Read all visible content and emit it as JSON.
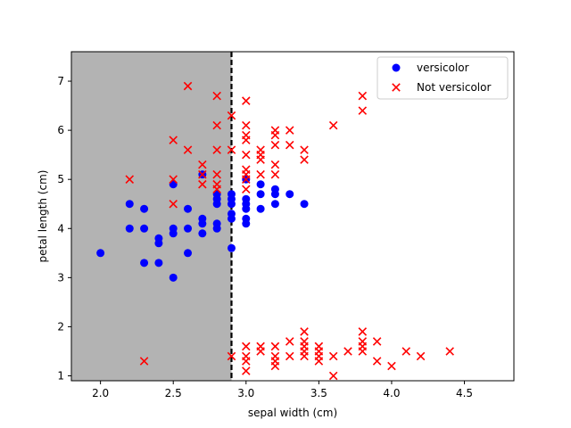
{
  "chart_data": {
    "type": "scatter",
    "xlabel": "sepal width (cm)",
    "ylabel": "petal length (cm)",
    "xlim": [
      1.8,
      4.84
    ],
    "ylim": [
      0.9,
      7.6
    ],
    "xticks": [
      2.0,
      2.5,
      3.0,
      3.5,
      4.0,
      4.5
    ],
    "xtick_labels": [
      "2.0",
      "2.5",
      "3.0",
      "3.5",
      "4.0",
      "4.5"
    ],
    "yticks": [
      1,
      2,
      3,
      4,
      5,
      6,
      7
    ],
    "ytick_labels": [
      "1",
      "2",
      "3",
      "4",
      "5",
      "6",
      "7"
    ],
    "grid": false,
    "legend_position": "top-right",
    "decision_boundary": {
      "x": 2.9,
      "shaded_side": "left",
      "shade_color": "#b3b3b3",
      "line_style": "dashed",
      "line_color": "#000000"
    },
    "series": [
      {
        "name": "versicolor",
        "marker": "circle",
        "color": "#0000ff",
        "points": [
          [
            2.0,
            3.5
          ],
          [
            2.2,
            4.0
          ],
          [
            2.2,
            4.5
          ],
          [
            2.3,
            3.3
          ],
          [
            2.3,
            4.0
          ],
          [
            2.3,
            4.4
          ],
          [
            2.4,
            3.3
          ],
          [
            2.4,
            3.7
          ],
          [
            2.4,
            3.8
          ],
          [
            2.5,
            3.0
          ],
          [
            2.5,
            3.9
          ],
          [
            2.5,
            4.0
          ],
          [
            2.5,
            4.9
          ],
          [
            2.6,
            3.5
          ],
          [
            2.6,
            4.0
          ],
          [
            2.6,
            4.4
          ],
          [
            2.7,
            3.9
          ],
          [
            2.7,
            4.1
          ],
          [
            2.7,
            4.2
          ],
          [
            2.7,
            5.1
          ],
          [
            2.8,
            4.0
          ],
          [
            2.8,
            4.1
          ],
          [
            2.8,
            4.5
          ],
          [
            2.8,
            4.6
          ],
          [
            2.8,
            4.7
          ],
          [
            2.9,
            3.6
          ],
          [
            2.9,
            4.2
          ],
          [
            2.9,
            4.3
          ],
          [
            2.9,
            4.5
          ],
          [
            2.9,
            4.6
          ],
          [
            2.9,
            4.7
          ],
          [
            3.0,
            4.1
          ],
          [
            3.0,
            4.2
          ],
          [
            3.0,
            4.4
          ],
          [
            3.0,
            4.5
          ],
          [
            3.0,
            4.6
          ],
          [
            3.0,
            5.0
          ],
          [
            3.1,
            4.4
          ],
          [
            3.1,
            4.7
          ],
          [
            3.1,
            4.9
          ],
          [
            3.2,
            4.5
          ],
          [
            3.2,
            4.7
          ],
          [
            3.2,
            4.8
          ],
          [
            3.3,
            4.7
          ],
          [
            3.4,
            4.5
          ]
        ]
      },
      {
        "name": "Not versicolor",
        "marker": "x",
        "color": "#ff0000",
        "points": [
          [
            2.2,
            5.0
          ],
          [
            2.3,
            1.3
          ],
          [
            2.5,
            4.5
          ],
          [
            2.5,
            5.0
          ],
          [
            2.5,
            5.8
          ],
          [
            2.6,
            5.6
          ],
          [
            2.6,
            6.9
          ],
          [
            2.7,
            4.9
          ],
          [
            2.7,
            5.1
          ],
          [
            2.7,
            5.3
          ],
          [
            2.8,
            4.8
          ],
          [
            2.8,
            4.9
          ],
          [
            2.8,
            5.1
          ],
          [
            2.8,
            5.6
          ],
          [
            2.8,
            6.1
          ],
          [
            2.8,
            6.7
          ],
          [
            2.9,
            1.4
          ],
          [
            2.9,
            5.6
          ],
          [
            2.9,
            6.3
          ],
          [
            3.0,
            1.1
          ],
          [
            3.0,
            1.3
          ],
          [
            3.0,
            1.4
          ],
          [
            3.0,
            1.6
          ],
          [
            3.0,
            4.8
          ],
          [
            3.0,
            5.0
          ],
          [
            3.0,
            5.1
          ],
          [
            3.0,
            5.2
          ],
          [
            3.0,
            5.5
          ],
          [
            3.0,
            5.8
          ],
          [
            3.0,
            5.9
          ],
          [
            3.0,
            6.1
          ],
          [
            3.0,
            6.6
          ],
          [
            3.1,
            1.5
          ],
          [
            3.1,
            1.6
          ],
          [
            3.1,
            5.1
          ],
          [
            3.1,
            5.4
          ],
          [
            3.1,
            5.5
          ],
          [
            3.1,
            5.6
          ],
          [
            3.2,
            1.2
          ],
          [
            3.2,
            1.3
          ],
          [
            3.2,
            1.4
          ],
          [
            3.2,
            1.6
          ],
          [
            3.2,
            5.1
          ],
          [
            3.2,
            5.3
          ],
          [
            3.2,
            5.7
          ],
          [
            3.2,
            5.9
          ],
          [
            3.2,
            6.0
          ],
          [
            3.3,
            1.4
          ],
          [
            3.3,
            1.7
          ],
          [
            3.3,
            5.7
          ],
          [
            3.3,
            6.0
          ],
          [
            3.4,
            1.4
          ],
          [
            3.4,
            1.5
          ],
          [
            3.4,
            1.6
          ],
          [
            3.4,
            1.7
          ],
          [
            3.4,
            1.9
          ],
          [
            3.4,
            5.4
          ],
          [
            3.4,
            5.6
          ],
          [
            3.5,
            1.3
          ],
          [
            3.5,
            1.4
          ],
          [
            3.5,
            1.5
          ],
          [
            3.5,
            1.6
          ],
          [
            3.6,
            1.0
          ],
          [
            3.6,
            1.4
          ],
          [
            3.6,
            6.1
          ],
          [
            3.7,
            1.5
          ],
          [
            3.8,
            1.5
          ],
          [
            3.8,
            1.6
          ],
          [
            3.8,
            1.7
          ],
          [
            3.8,
            1.9
          ],
          [
            3.8,
            6.4
          ],
          [
            3.8,
            6.7
          ],
          [
            3.9,
            1.3
          ],
          [
            3.9,
            1.7
          ],
          [
            4.0,
            1.2
          ],
          [
            4.1,
            1.5
          ],
          [
            4.2,
            1.4
          ],
          [
            4.4,
            1.5
          ]
        ]
      }
    ]
  }
}
